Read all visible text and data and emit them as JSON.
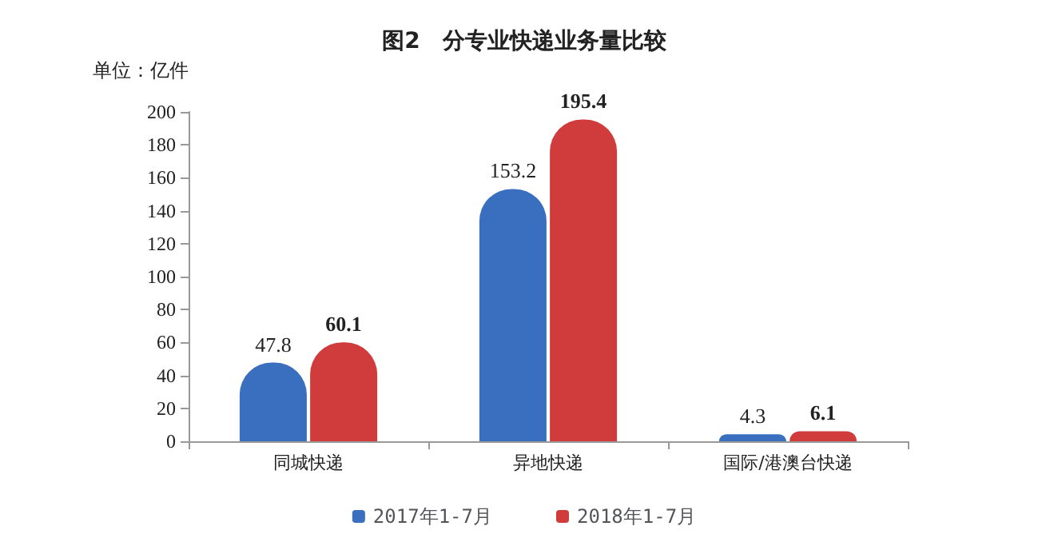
{
  "chart_data": {
    "type": "bar",
    "title": "图2　分专业快递业务量比较",
    "ylabel": "单位：亿件",
    "categories": [
      "同城快递",
      "异地快递",
      "国际/港澳台快递"
    ],
    "series": [
      {
        "name": "2017年1-7月",
        "color": "#3a6fc0",
        "values": [
          47.8,
          153.2,
          4.3
        ]
      },
      {
        "name": "2018年1-7月",
        "color": "#d03c3c",
        "values": [
          60.1,
          195.4,
          6.1
        ]
      }
    ],
    "ylim": [
      0,
      200
    ],
    "yticks": [
      0,
      20,
      40,
      60,
      80,
      100,
      120,
      140,
      160,
      180,
      200
    ],
    "data_labels": true,
    "grid": false,
    "legend": "bottom"
  }
}
